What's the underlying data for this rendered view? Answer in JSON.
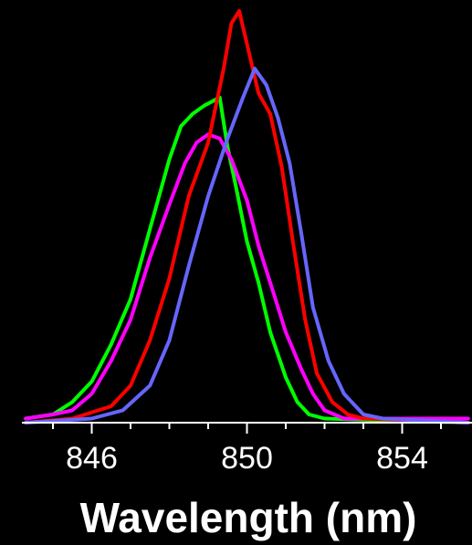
{
  "chart_data": {
    "type": "line",
    "title": "",
    "xlabel": "Wavelength (nm)",
    "ylabel": "",
    "xlim": [
      844.2,
      855.8
    ],
    "ylim": [
      0,
      1
    ],
    "x_ticks": [
      846,
      850,
      854
    ],
    "x_minor_step": 1,
    "grid": false,
    "legend": "none",
    "background": "#000000",
    "axis_color": "#ffffff",
    "series": [
      {
        "color": "#00ff00",
        "points": [
          [
            844.3,
            0.01
          ],
          [
            845.0,
            0.02
          ],
          [
            845.5,
            0.05
          ],
          [
            846.0,
            0.1
          ],
          [
            846.5,
            0.19
          ],
          [
            847.0,
            0.3
          ],
          [
            847.5,
            0.47
          ],
          [
            848.0,
            0.64
          ],
          [
            848.3,
            0.72
          ],
          [
            848.6,
            0.75
          ],
          [
            848.9,
            0.77
          ],
          [
            849.1,
            0.78
          ],
          [
            849.3,
            0.79
          ],
          [
            849.5,
            0.67
          ],
          [
            849.7,
            0.58
          ],
          [
            850.0,
            0.44
          ],
          [
            850.3,
            0.34
          ],
          [
            850.6,
            0.22
          ],
          [
            851.0,
            0.11
          ],
          [
            851.3,
            0.05
          ],
          [
            851.6,
            0.02
          ],
          [
            852.0,
            0.01
          ],
          [
            855.7,
            0.0
          ]
        ]
      },
      {
        "color": "#ff00ff",
        "points": [
          [
            844.3,
            0.01
          ],
          [
            845.0,
            0.02
          ],
          [
            845.5,
            0.03
          ],
          [
            846.0,
            0.07
          ],
          [
            846.5,
            0.15
          ],
          [
            847.0,
            0.25
          ],
          [
            847.5,
            0.4
          ],
          [
            848.0,
            0.53
          ],
          [
            848.4,
            0.63
          ],
          [
            848.7,
            0.68
          ],
          [
            849.0,
            0.7
          ],
          [
            849.3,
            0.69
          ],
          [
            849.6,
            0.64
          ],
          [
            850.0,
            0.54
          ],
          [
            850.3,
            0.43
          ],
          [
            850.7,
            0.31
          ],
          [
            851.0,
            0.22
          ],
          [
            851.4,
            0.13
          ],
          [
            851.7,
            0.07
          ],
          [
            852.0,
            0.03
          ],
          [
            852.5,
            0.01
          ],
          [
            853.0,
            0.01
          ],
          [
            855.7,
            0.01
          ]
        ]
      },
      {
        "color": "#ff0000",
        "points": [
          [
            844.3,
            0.0
          ],
          [
            845.5,
            0.01
          ],
          [
            846.5,
            0.04
          ],
          [
            847.0,
            0.09
          ],
          [
            847.5,
            0.2
          ],
          [
            848.0,
            0.35
          ],
          [
            848.5,
            0.55
          ],
          [
            849.0,
            0.68
          ],
          [
            849.4,
            0.86
          ],
          [
            849.6,
            0.97
          ],
          [
            849.8,
            1.0
          ],
          [
            850.0,
            0.92
          ],
          [
            850.3,
            0.8
          ],
          [
            850.6,
            0.75
          ],
          [
            850.9,
            0.62
          ],
          [
            851.2,
            0.43
          ],
          [
            851.5,
            0.25
          ],
          [
            851.8,
            0.12
          ],
          [
            852.2,
            0.05
          ],
          [
            852.6,
            0.02
          ],
          [
            853.0,
            0.01
          ],
          [
            855.7,
            0.0
          ]
        ]
      },
      {
        "color": "#6666ff",
        "points": [
          [
            844.3,
            0.0
          ],
          [
            846.0,
            0.01
          ],
          [
            846.8,
            0.03
          ],
          [
            847.5,
            0.09
          ],
          [
            848.0,
            0.2
          ],
          [
            848.5,
            0.38
          ],
          [
            849.0,
            0.55
          ],
          [
            849.5,
            0.69
          ],
          [
            849.9,
            0.79
          ],
          [
            850.2,
            0.86
          ],
          [
            850.5,
            0.82
          ],
          [
            850.8,
            0.74
          ],
          [
            851.1,
            0.63
          ],
          [
            851.4,
            0.46
          ],
          [
            851.7,
            0.28
          ],
          [
            852.1,
            0.15
          ],
          [
            852.5,
            0.07
          ],
          [
            853.0,
            0.02
          ],
          [
            853.5,
            0.01
          ],
          [
            855.7,
            0.0
          ]
        ]
      }
    ]
  }
}
